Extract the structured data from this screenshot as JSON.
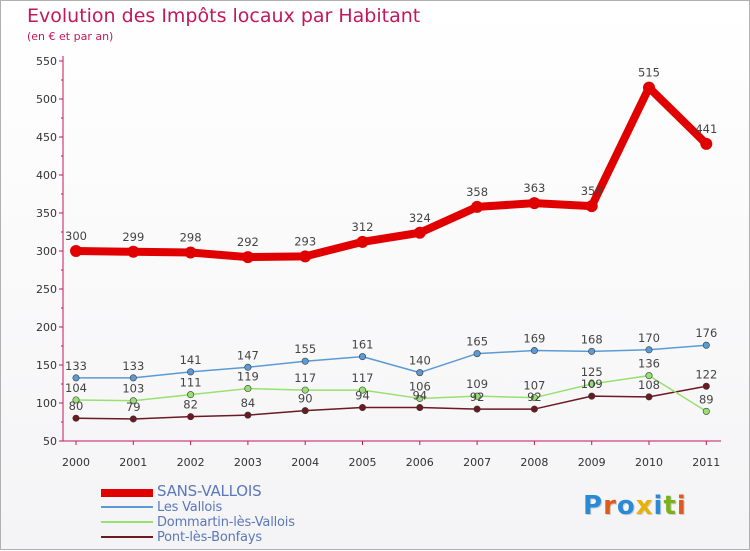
{
  "title": "Evolution des Impôts locaux par Habitant",
  "subtitle": "(en € et par an)",
  "logo": {
    "text": "Proxiti",
    "letter_colors": [
      "#2a8ad4",
      "#e05a1a",
      "#2a8ad4",
      "#e8b10a",
      "#2a8ad4",
      "#7ab21e",
      "#e05a1a"
    ]
  },
  "chart_data": {
    "type": "line",
    "title": "Evolution des Impôts locaux par Habitant",
    "subtitle": "(en € et par an)",
    "x": [
      "2000",
      "2001",
      "2002",
      "2003",
      "2004",
      "2005",
      "2006",
      "2007",
      "2008",
      "2009",
      "2010",
      "2011"
    ],
    "ylim": [
      50,
      550
    ],
    "yticks": [
      50,
      100,
      150,
      200,
      250,
      300,
      350,
      400,
      450,
      500,
      550
    ],
    "grid": false,
    "legend_position": "bottom-left",
    "series": [
      {
        "name": "SANS-VALLOIS",
        "color": "#e00000",
        "emphasis": true,
        "values": [
          300,
          299,
          298,
          292,
          293,
          312,
          324,
          358,
          363,
          359,
          515,
          441
        ]
      },
      {
        "name": "Les Vallois",
        "color": "#5b9bd5",
        "emphasis": false,
        "values": [
          133,
          133,
          141,
          147,
          155,
          161,
          140,
          165,
          169,
          168,
          170,
          176
        ]
      },
      {
        "name": "Dommartin-lès-Vallois",
        "color": "#98e070",
        "emphasis": false,
        "values": [
          104,
          103,
          111,
          119,
          117,
          117,
          106,
          109,
          107,
          125,
          136,
          89
        ]
      },
      {
        "name": "Pont-lès-Bonfays",
        "color": "#6b1a22",
        "emphasis": false,
        "values": [
          80,
          79,
          82,
          84,
          90,
          94,
          94,
          92,
          92,
          109,
          108,
          122
        ]
      }
    ]
  }
}
